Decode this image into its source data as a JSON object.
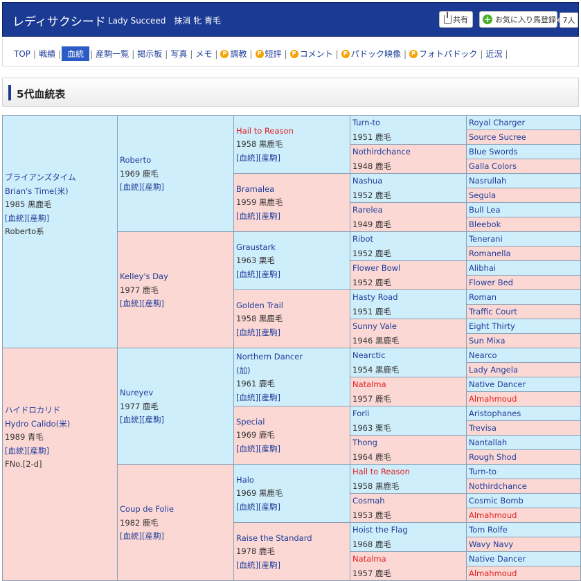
{
  "header": {
    "horse_name": "レディサクシード",
    "subtitle": "Lady Succeed　抹消 牝 青毛",
    "share_label": "共有",
    "fav_label": "お気に入り馬登録",
    "fav_count": "7人"
  },
  "nav": {
    "items": [
      {
        "label": "TOP",
        "p": false,
        "active": false
      },
      {
        "label": "戦績",
        "p": false,
        "active": false
      },
      {
        "label": "血統",
        "p": false,
        "active": true
      },
      {
        "label": "産駒一覧",
        "p": false,
        "active": false
      },
      {
        "label": "掲示板",
        "p": false,
        "active": false
      },
      {
        "label": "写真",
        "p": false,
        "active": false
      },
      {
        "label": "メモ",
        "p": false,
        "active": false
      },
      {
        "label": "調教",
        "p": true,
        "active": false
      },
      {
        "label": "短評",
        "p": true,
        "active": false
      },
      {
        "label": "コメント",
        "p": true,
        "active": false
      },
      {
        "label": "パドック映像",
        "p": true,
        "active": false
      },
      {
        "label": "フォトパドック",
        "p": true,
        "active": false
      },
      {
        "label": "近況",
        "p": false,
        "active": false
      }
    ]
  },
  "section": {
    "title": "5代血統表"
  },
  "links": {
    "kettou": "[血統]",
    "sanku": "[産駒]"
  },
  "pedigree": {
    "gen1": [
      {
        "jp": "ブライアンズタイム",
        "name": "Brian's Time(米)",
        "year": "1985 黒鹿毛",
        "note": "Roberto系",
        "color": "blue"
      },
      {
        "jp": "ハイドロカリド",
        "name": "Hydro Calido(米)",
        "year": "1989 青毛",
        "note": "FNo.[2-d]",
        "color": "pink"
      }
    ],
    "gen2": [
      {
        "name": "Roberto",
        "year": "1969 鹿毛",
        "color": "blue"
      },
      {
        "name": "Kelley's Day",
        "year": "1977 鹿毛",
        "color": "pink"
      },
      {
        "name": "Nureyev",
        "year": "1977 鹿毛",
        "color": "blue"
      },
      {
        "name": "Coup de Folie",
        "year": "1982 鹿毛",
        "color": "pink"
      }
    ],
    "gen3": [
      {
        "name": "Hail to Reason",
        "name2": "",
        "year": "1958 黒鹿毛",
        "color": "blue",
        "red": true
      },
      {
        "name": "Bramalea",
        "name2": "",
        "year": "1959 黒鹿毛",
        "color": "pink",
        "red": false
      },
      {
        "name": "Graustark",
        "name2": "",
        "year": "1963 栗毛",
        "color": "blue",
        "red": false
      },
      {
        "name": "Golden Trail",
        "name2": "",
        "year": "1958 黒鹿毛",
        "color": "pink",
        "red": false
      },
      {
        "name": "Northern Dancer",
        "name2": "(加)",
        "year": "1961 鹿毛",
        "color": "blue",
        "red": false
      },
      {
        "name": "Special",
        "name2": "",
        "year": "1969 鹿毛",
        "color": "pink",
        "red": false
      },
      {
        "name": "Halo",
        "name2": "",
        "year": "1969 黒鹿毛",
        "color": "blue",
        "red": false
      },
      {
        "name": "Raise the Standard",
        "name2": "",
        "year": "1978 鹿毛",
        "color": "pink",
        "red": false
      }
    ],
    "gen4": [
      {
        "name": "Turn-to",
        "year": "1951 鹿毛",
        "color": "blue",
        "red": false
      },
      {
        "name": "Nothirdchance",
        "year": "1948 鹿毛",
        "color": "pink",
        "red": false
      },
      {
        "name": "Nashua",
        "year": "1952 鹿毛",
        "color": "blue",
        "red": false
      },
      {
        "name": "Rarelea",
        "year": "1949 鹿毛",
        "color": "pink",
        "red": false
      },
      {
        "name": "Ribot",
        "year": "1952 鹿毛",
        "color": "blue",
        "red": false
      },
      {
        "name": "Flower Bowl",
        "year": "1952 鹿毛",
        "color": "pink",
        "red": false
      },
      {
        "name": "Hasty Road",
        "year": "1951 鹿毛",
        "color": "blue",
        "red": false
      },
      {
        "name": "Sunny Vale",
        "year": "1946 黒鹿毛",
        "color": "pink",
        "red": false
      },
      {
        "name": "Nearctic",
        "year": "1954 黒鹿毛",
        "color": "blue",
        "red": false
      },
      {
        "name": "Natalma",
        "year": "1957 鹿毛",
        "color": "pink",
        "red": true
      },
      {
        "name": "Forli",
        "year": "1963 栗毛",
        "color": "blue",
        "red": false
      },
      {
        "name": "Thong",
        "year": "1964 鹿毛",
        "color": "pink",
        "red": false
      },
      {
        "name": "Hail to Reason",
        "year": "1958 黒鹿毛",
        "color": "blue",
        "red": true
      },
      {
        "name": "Cosmah",
        "year": "1953 鹿毛",
        "color": "pink",
        "red": false
      },
      {
        "name": "Hoist the Flag",
        "year": "1968 鹿毛",
        "color": "blue",
        "red": false
      },
      {
        "name": "Natalma",
        "year": "1957 鹿毛",
        "color": "pink",
        "red": true
      }
    ],
    "gen5": [
      {
        "name": "Royal Charger",
        "color": "blue",
        "red": false
      },
      {
        "name": "Source Sucree",
        "color": "pink",
        "red": false
      },
      {
        "name": "Blue Swords",
        "color": "blue",
        "red": false
      },
      {
        "name": "Galla Colors",
        "color": "pink",
        "red": false
      },
      {
        "name": "Nasrullah",
        "color": "blue",
        "red": false
      },
      {
        "name": "Segula",
        "color": "pink",
        "red": false
      },
      {
        "name": "Bull Lea",
        "color": "blue",
        "red": false
      },
      {
        "name": "Bleebok",
        "color": "pink",
        "red": false
      },
      {
        "name": "Tenerani",
        "color": "blue",
        "red": false
      },
      {
        "name": "Romanella",
        "color": "pink",
        "red": false
      },
      {
        "name": "Alibhai",
        "color": "blue",
        "red": false
      },
      {
        "name": "Flower Bed",
        "color": "pink",
        "red": false
      },
      {
        "name": "Roman",
        "color": "blue",
        "red": false
      },
      {
        "name": "Traffic Court",
        "color": "pink",
        "red": false
      },
      {
        "name": "Eight Thirty",
        "color": "blue",
        "red": false
      },
      {
        "name": "Sun Mixa",
        "color": "pink",
        "red": false
      },
      {
        "name": "Nearco",
        "color": "blue",
        "red": false
      },
      {
        "name": "Lady Angela",
        "color": "pink",
        "red": false
      },
      {
        "name": "Native Dancer",
        "color": "blue",
        "red": false
      },
      {
        "name": "Almahmoud",
        "color": "pink",
        "red": true
      },
      {
        "name": "Aristophanes",
        "color": "blue",
        "red": false
      },
      {
        "name": "Trevisa",
        "color": "pink",
        "red": false
      },
      {
        "name": "Nantallah",
        "color": "blue",
        "red": false
      },
      {
        "name": "Rough Shod",
        "color": "pink",
        "red": false
      },
      {
        "name": "Turn-to",
        "color": "blue",
        "red": false
      },
      {
        "name": "Nothirdchance",
        "color": "pink",
        "red": false
      },
      {
        "name": "Cosmic Bomb",
        "color": "blue",
        "red": false
      },
      {
        "name": "Almahmoud",
        "color": "pink",
        "red": true
      },
      {
        "name": "Tom Rolfe",
        "color": "blue",
        "red": false
      },
      {
        "name": "Wavy Navy",
        "color": "pink",
        "red": false
      },
      {
        "name": "Native Dancer",
        "color": "blue",
        "red": false
      },
      {
        "name": "Almahmoud",
        "color": "pink",
        "red": true
      }
    ]
  }
}
